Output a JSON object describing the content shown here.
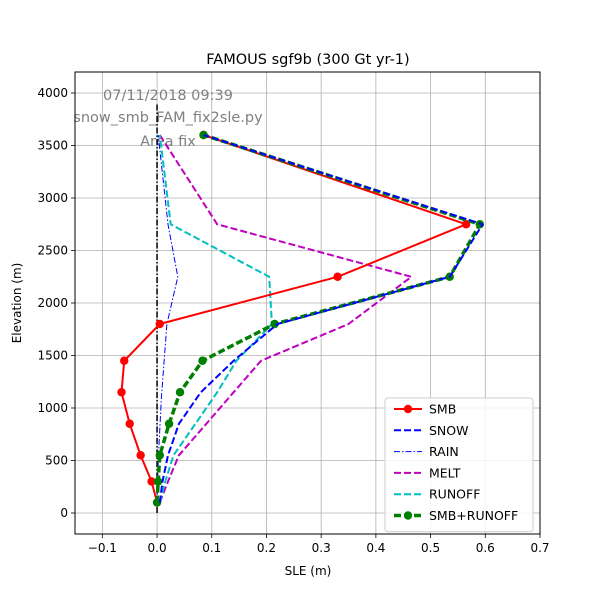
{
  "chart_data": {
    "type": "line",
    "title": "FAMOUS sgf9b (300 Gt yr-1)",
    "xlabel": "SLE (m)",
    "ylabel": "Elevation (m)",
    "xlim": [
      -0.15,
      0.7
    ],
    "ylim": [
      -200,
      4200
    ],
    "x_ticks": [
      "−0.1",
      "0.0",
      "0.1",
      "0.2",
      "0.3",
      "0.4",
      "0.5",
      "0.6",
      "0.7"
    ],
    "x_tick_values": [
      -0.1,
      0.0,
      0.1,
      0.2,
      0.3,
      0.4,
      0.5,
      0.6,
      0.7
    ],
    "y_ticks": [
      "0",
      "500",
      "1000",
      "1500",
      "2000",
      "2500",
      "3000",
      "3500",
      "4000"
    ],
    "y_tick_values": [
      0,
      500,
      1000,
      1500,
      2000,
      2500,
      3000,
      3500,
      4000
    ],
    "grid": true,
    "legend_position": "lower-right",
    "annotations": [
      "07/11/2018 09:39",
      "snow_smb_FAM_fix2sle.py",
      "Area fix"
    ],
    "reference_line": {
      "x": 0.0,
      "y": [
        0,
        3900
      ],
      "color": "#000000",
      "style": "dash-dot"
    },
    "series": [
      {
        "name": "SMB",
        "color": "#ff0000",
        "style": "solid",
        "marker": "circle",
        "width": 2,
        "points": [
          [
            0.0,
            100
          ],
          [
            -0.01,
            300
          ],
          [
            -0.03,
            550
          ],
          [
            -0.05,
            850
          ],
          [
            -0.065,
            1150
          ],
          [
            -0.06,
            1450
          ],
          [
            0.005,
            1800
          ],
          [
            0.33,
            2250
          ],
          [
            0.565,
            2750
          ],
          [
            0.085,
            3600
          ]
        ]
      },
      {
        "name": "SNOW",
        "color": "#0000ff",
        "style": "dashed",
        "marker": "none",
        "width": 2,
        "points": [
          [
            0.005,
            100
          ],
          [
            0.01,
            300
          ],
          [
            0.02,
            550
          ],
          [
            0.04,
            850
          ],
          [
            0.08,
            1150
          ],
          [
            0.14,
            1450
          ],
          [
            0.22,
            1800
          ],
          [
            0.535,
            2250
          ],
          [
            0.595,
            2750
          ],
          [
            0.085,
            3600
          ]
        ]
      },
      {
        "name": "RAIN",
        "color": "#0000ff",
        "style": "dash-dot",
        "marker": "none",
        "width": 1,
        "points": [
          [
            0.0,
            100
          ],
          [
            0.002,
            500
          ],
          [
            0.008,
            1100
          ],
          [
            0.018,
            1800
          ],
          [
            0.038,
            2250
          ],
          [
            0.02,
            2750
          ],
          [
            0.002,
            3600
          ]
        ]
      },
      {
        "name": "MELT",
        "color": "#bf00bf",
        "style": "dashed",
        "marker": "none",
        "width": 2,
        "points": [
          [
            0.005,
            100
          ],
          [
            0.02,
            300
          ],
          [
            0.04,
            550
          ],
          [
            0.09,
            850
          ],
          [
            0.14,
            1150
          ],
          [
            0.19,
            1450
          ],
          [
            0.35,
            1800
          ],
          [
            0.465,
            2250
          ],
          [
            0.11,
            2750
          ],
          [
            0.005,
            3600
          ]
        ]
      },
      {
        "name": "RUNOFF",
        "color": "#00bfbf",
        "style": "dashed",
        "marker": "none",
        "width": 2,
        "points": [
          [
            0.005,
            100
          ],
          [
            0.015,
            300
          ],
          [
            0.03,
            550
          ],
          [
            0.07,
            850
          ],
          [
            0.11,
            1150
          ],
          [
            0.145,
            1450
          ],
          [
            0.21,
            1800
          ],
          [
            0.205,
            2250
          ],
          [
            0.025,
            2750
          ],
          [
            0.005,
            3600
          ]
        ]
      },
      {
        "name": "SMB+RUNOFF",
        "color": "#008000",
        "style": "dashed",
        "marker": "circle",
        "width": 3.5,
        "points": [
          [
            0.0,
            100
          ],
          [
            0.002,
            300
          ],
          [
            0.005,
            550
          ],
          [
            0.022,
            850
          ],
          [
            0.042,
            1150
          ],
          [
            0.083,
            1450
          ],
          [
            0.215,
            1800
          ],
          [
            0.535,
            2250
          ],
          [
            0.59,
            2750
          ],
          [
            0.085,
            3600
          ]
        ]
      }
    ]
  }
}
